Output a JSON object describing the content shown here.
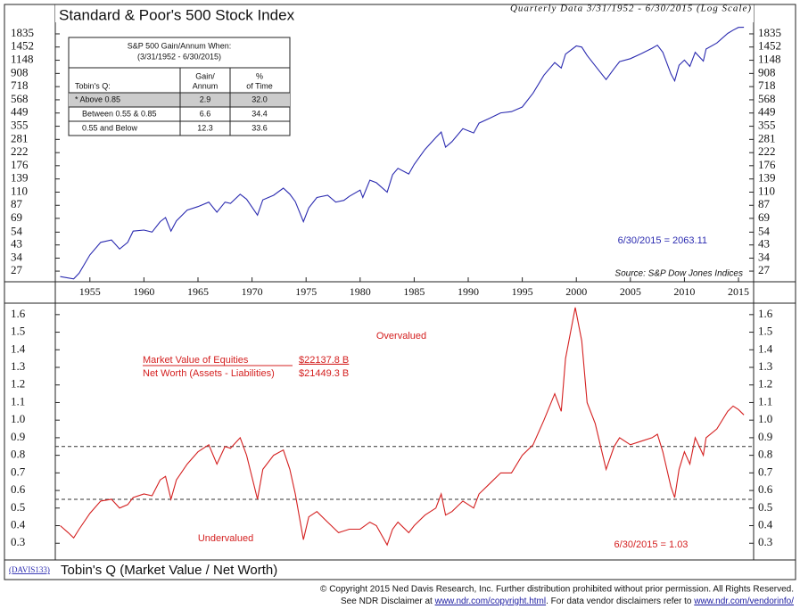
{
  "chart_data": [
    {
      "type": "line",
      "title": "Standard & Poor's 500 Stock Index",
      "subtitle": "Quarterly Data 3/31/1952 - 6/30/2015 (Log Scale)",
      "log_scale": true,
      "x": [
        1952.25,
        1953.5,
        1954,
        1955,
        1956,
        1957,
        1957.75,
        1958.5,
        1959,
        1960,
        1960.75,
        1961.5,
        1962,
        1962.5,
        1963,
        1964,
        1965,
        1966,
        1966.75,
        1967.5,
        1968,
        1968.9,
        1969.5,
        1970.5,
        1971,
        1972,
        1972.9,
        1973.5,
        1974,
        1974.75,
        1975.25,
        1976,
        1977,
        1977.75,
        1978.5,
        1979,
        1980,
        1980.25,
        1980.9,
        1981.5,
        1982.5,
        1983,
        1983.5,
        1984.5,
        1985,
        1986,
        1987,
        1987.5,
        1987.9,
        1988.5,
        1989.5,
        1990.5,
        1991,
        1992,
        1993,
        1994,
        1995,
        1996,
        1997,
        1998,
        1998.6,
        1999,
        2000,
        2000.5,
        2001,
        2001.75,
        2002.75,
        2003.5,
        2004,
        2005,
        2006,
        2007,
        2007.5,
        2008,
        2008.75,
        2009.1,
        2009.5,
        2010,
        2010.5,
        2011,
        2011.75,
        2012,
        2013,
        2014,
        2014.5,
        2015,
        2015.5
      ],
      "series": [
        {
          "name": "S&P 500",
          "color": "#2b2bb0",
          "values": [
            24.5,
            23.5,
            26,
            36,
            45,
            47,
            40,
            45,
            55,
            56,
            54,
            65,
            70,
            55,
            66,
            80,
            85,
            92,
            77,
            92,
            90,
            106,
            97,
            73,
            96,
            104,
            118,
            106,
            93,
            65,
            83,
            100,
            104,
            92,
            95,
            102,
            114,
            100,
            136,
            130,
            110,
            150,
            168,
            152,
            180,
            235,
            290,
            320,
            245,
            270,
            340,
            315,
            375,
            410,
            450,
            460,
            500,
            640,
            880,
            1100,
            1000,
            1280,
            1480,
            1450,
            1250,
            1040,
            815,
            990,
            1120,
            1180,
            1290,
            1420,
            1500,
            1320,
            900,
            795,
            1050,
            1150,
            1030,
            1320,
            1130,
            1400,
            1560,
            1850,
            1960,
            2060,
            2063.11
          ]
        }
      ],
      "xlim": [
        1951.8,
        2016.4
      ],
      "xticks": [
        1955,
        1960,
        1965,
        1970,
        1975,
        1980,
        1985,
        1990,
        1995,
        2000,
        2005,
        2010,
        2015
      ],
      "ylim": [
        22.7,
        2770
      ],
      "yticks": [
        27,
        34,
        43,
        54,
        69,
        87,
        110,
        139,
        176,
        222,
        281,
        355,
        449,
        568,
        718,
        908,
        1148,
        1452,
        1835
      ],
      "annotation": "6/30/2015 = 2063.11",
      "source": "Source: S&P Dow Jones Indices",
      "table": {
        "title": [
          "S&P 500 Gain/Annum When:",
          "(3/31/1952 - 6/30/2015)"
        ],
        "header": [
          "Tobin's Q:",
          [
            "Gain/",
            "Annum"
          ],
          [
            "%",
            "of Time"
          ]
        ],
        "rows": [
          [
            "* Above 0.85",
            "2.9",
            "32.0"
          ],
          [
            "Between 0.55 & 0.85",
            "6.6",
            "34.4"
          ],
          [
            "0.55 and Below",
            "12.3",
            "33.6"
          ]
        ]
      }
    },
    {
      "type": "line",
      "title": "Tobin's Q (Market Value / Net Worth)",
      "label": "(DAVIS133)",
      "x": [
        1952.25,
        1953,
        1953.5,
        1954,
        1955,
        1956,
        1957,
        1957.75,
        1958.5,
        1959,
        1960,
        1960.75,
        1961.5,
        1962,
        1962.5,
        1963,
        1964,
        1965,
        1966,
        1966.75,
        1967.5,
        1968,
        1968.9,
        1969.5,
        1970.5,
        1971,
        1972,
        1972.9,
        1973.5,
        1974,
        1974.75,
        1975.25,
        1976,
        1977,
        1978,
        1979,
        1980,
        1980.9,
        1981.5,
        1982.5,
        1983,
        1983.5,
        1984.5,
        1985,
        1986,
        1987,
        1987.5,
        1987.9,
        1988.5,
        1989.5,
        1990.5,
        1991,
        1992,
        1993,
        1994,
        1995,
        1996,
        1997,
        1998,
        1998.6,
        1999,
        1999.9,
        2000.5,
        2001,
        2001.75,
        2002.75,
        2003.5,
        2004,
        2005,
        2006,
        2007,
        2007.5,
        2008,
        2008.75,
        2009.1,
        2009.5,
        2010,
        2010.5,
        2011,
        2011.75,
        2012,
        2013,
        2014,
        2014.5,
        2015,
        2015.5
      ],
      "series": [
        {
          "name": "Tobin's Q",
          "color": "#d42020",
          "values": [
            0.4,
            0.36,
            0.33,
            0.38,
            0.47,
            0.54,
            0.55,
            0.5,
            0.52,
            0.56,
            0.58,
            0.57,
            0.66,
            0.68,
            0.55,
            0.66,
            0.75,
            0.82,
            0.86,
            0.75,
            0.85,
            0.84,
            0.9,
            0.8,
            0.55,
            0.72,
            0.8,
            0.83,
            0.72,
            0.58,
            0.32,
            0.45,
            0.48,
            0.42,
            0.36,
            0.38,
            0.38,
            0.42,
            0.4,
            0.29,
            0.38,
            0.42,
            0.36,
            0.4,
            0.46,
            0.5,
            0.58,
            0.46,
            0.48,
            0.54,
            0.5,
            0.58,
            0.64,
            0.7,
            0.7,
            0.8,
            0.86,
            1.0,
            1.15,
            1.05,
            1.35,
            1.64,
            1.45,
            1.1,
            0.98,
            0.72,
            0.85,
            0.9,
            0.86,
            0.88,
            0.9,
            0.92,
            0.82,
            0.62,
            0.56,
            0.72,
            0.82,
            0.75,
            0.9,
            0.8,
            0.9,
            0.95,
            1.05,
            1.08,
            1.06,
            1.03
          ]
        }
      ],
      "xlim": [
        1951.8,
        2016.4
      ],
      "ylim": [
        0.21,
        1.66
      ],
      "yticks": [
        0.3,
        0.4,
        0.5,
        0.6,
        0.7,
        0.8,
        0.9,
        {
          "value": 1,
          "label": "1.0"
        },
        1.1,
        1.2,
        1.3,
        1.4,
        1.5,
        1.6
      ],
      "reference_lines": [
        0.85,
        0.55
      ],
      "annotations": {
        "overvalued": "Overvalued",
        "undervalued": "Undervalued",
        "last": "6/30/2015 = 1.03"
      },
      "legend_table": [
        [
          "Market Value of Equities",
          "$22137.8 B"
        ],
        [
          "Net Worth (Assets - Liabilities)",
          "$21449.3 B"
        ]
      ]
    }
  ],
  "footer": {
    "line1": "© Copyright 2015 Ned Davis Research, Inc.  Further distribution prohibited without prior permission.  All Rights Reserved.",
    "line2": [
      "See NDR Disclaimer at ",
      "www.ndr.com/copyright.html",
      ".  For data vendor disclaimers refer to ",
      "www.ndr.com/vendorinfo/"
    ]
  }
}
